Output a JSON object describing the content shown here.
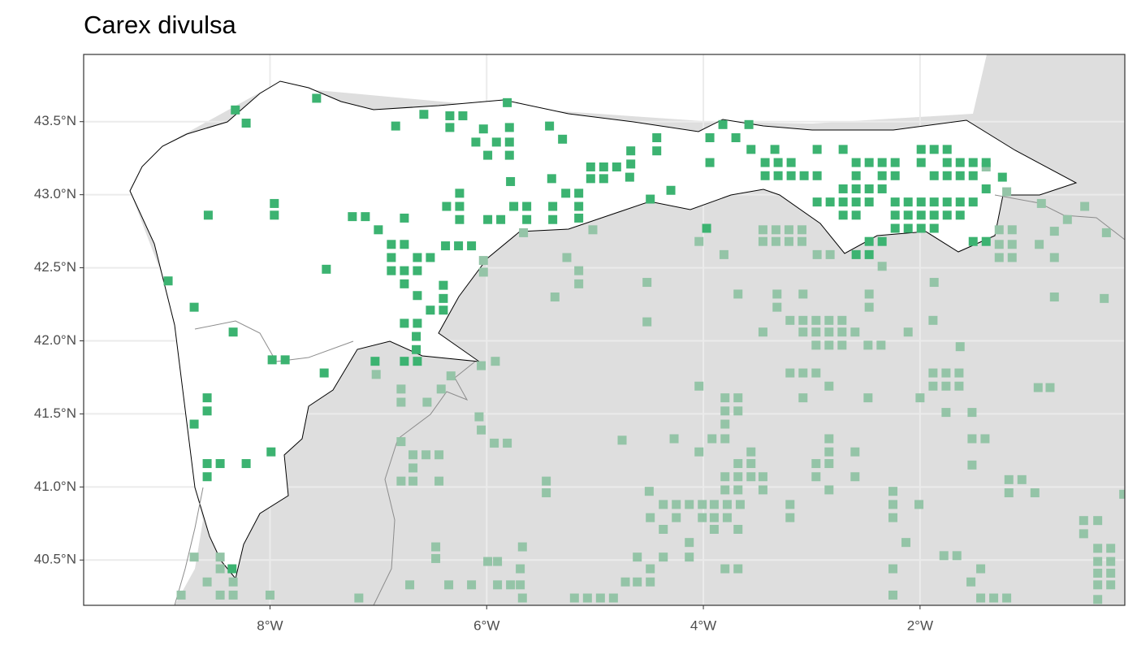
{
  "chart_data": {
    "type": "scatter",
    "title": "Carex divulsa",
    "xlim": [
      -9.72,
      -0.11
    ],
    "ylim": [
      40.19,
      43.96
    ],
    "xticks": [
      {
        "value": -8,
        "label": "8°W"
      },
      {
        "value": -6,
        "label": "6°W"
      },
      {
        "value": -4,
        "label": "4°W"
      },
      {
        "value": -2,
        "label": "2°W"
      }
    ],
    "yticks": [
      {
        "value": 40.5,
        "label": "40.5°N"
      },
      {
        "value": 41.0,
        "label": "41.0°N"
      },
      {
        "value": 41.5,
        "label": "41.5°N"
      },
      {
        "value": 42.0,
        "label": "42.0°N"
      },
      {
        "value": 42.5,
        "label": "42.5°N"
      },
      {
        "value": 43.0,
        "label": "43.0°N"
      },
      {
        "value": 43.5,
        "label": "43.5°N"
      }
    ],
    "grid": true,
    "series": [
      {
        "color": "#94c4a7",
        "x": [
          -6.03,
          -6.03,
          -5.26,
          -5.15,
          -5.15,
          -5.37,
          -5.66,
          -5.02,
          -4.52,
          -4.52,
          -4.04,
          -3.81,
          -3.68,
          -3.45,
          -3.33,
          -3.21,
          -3.09,
          -3.45,
          -3.33,
          -3.21,
          -3.09,
          -2.95,
          -2.83,
          -2.35,
          -1.87,
          -1.27,
          -1.15,
          -1.27,
          -1.15,
          -1.27,
          -1.15,
          -0.9,
          -0.76,
          -0.76,
          -0.64,
          -0.28,
          -0.3,
          -0.76,
          -0.88,
          -3.32,
          -3.08,
          -3.32,
          -3.2,
          -3.08,
          -2.96,
          -2.84,
          -2.72,
          -3.08,
          -2.96,
          -2.84,
          -2.72,
          -2.6,
          -3.45,
          -2.96,
          -2.84,
          -2.72,
          -2.48,
          -2.36,
          -2.11,
          -2.47,
          -2.47,
          -1.88,
          -1.63,
          -3.2,
          -3.08,
          -2.96,
          -2.84,
          -3.08,
          -2.48,
          -1.88,
          -1.76,
          -1.64,
          -1.88,
          -1.76,
          -1.64,
          -2.0,
          -1.76,
          -1.52,
          -0.91,
          -0.8,
          -4.04,
          -3.8,
          -3.68,
          -3.8,
          -3.68,
          -3.8,
          -3.92,
          -3.8,
          -4.04,
          -3.56,
          -3.68,
          -3.56,
          -3.8,
          -3.68,
          -3.56,
          -3.45,
          -3.8,
          -3.68,
          -3.45,
          -2.96,
          -2.84,
          -2.84,
          -2.84,
          -2.6,
          -2.96,
          -2.84,
          -2.6,
          -1.52,
          -1.4,
          -1.52,
          -1.18,
          -1.06,
          -1.18,
          -0.94,
          -2.25,
          -2.01,
          -2.25,
          -2.25,
          -3.2,
          -3.2,
          -4.5,
          -4.37,
          -4.25,
          -4.13,
          -4.01,
          -3.9,
          -3.78,
          -3.66,
          -4.49,
          -4.25,
          -4.01,
          -3.9,
          -3.78,
          -4.37,
          -3.9,
          -3.68,
          -4.13,
          -4.61,
          -4.37,
          -4.13,
          -4.49,
          -4.61,
          -4.49,
          -4.72,
          -4.83,
          -4.95,
          -5.07,
          -5.19,
          -3.8,
          -3.68,
          -2.25,
          -2.25,
          -2.13,
          -1.78,
          -1.66,
          -1.44,
          -1.53,
          -1.44,
          -1.32,
          -1.2,
          -0.49,
          -0.36,
          -0.49,
          -0.36,
          -0.24,
          -0.36,
          -0.24,
          -0.36,
          -0.24,
          -0.36,
          -0.24,
          -0.36,
          -0.12,
          -1.39,
          -1.2,
          -0.48,
          -5.92,
          -5.69,
          -5.69,
          -5.99,
          -5.9,
          -5.9,
          -5.78,
          -5.67,
          -6.14,
          -6.35,
          -6.47,
          -6.47,
          -5.67,
          -6.71,
          -6.79,
          -6.68,
          -6.56,
          -6.44,
          -6.68,
          -6.79,
          -6.68,
          -6.44,
          -6.07,
          -6.05,
          -5.93,
          -5.81,
          -5.45,
          -5.45,
          -4.75,
          -4.27,
          -6.33,
          -6.42,
          -6.55,
          -6.79,
          -6.79,
          -7.02,
          -6.05,
          -8.7,
          -8.46,
          -8.46,
          -8.58,
          -8.34,
          -8.82,
          -8.46,
          -8.34,
          -8.0,
          -7.18
        ],
        "values": [
          42.55,
          42.47,
          42.57,
          42.48,
          42.39,
          42.3,
          42.74,
          42.76,
          42.4,
          42.13,
          42.68,
          42.59,
          42.32,
          42.76,
          42.76,
          42.76,
          42.76,
          42.68,
          42.68,
          42.68,
          42.68,
          42.59,
          42.59,
          42.51,
          42.4,
          42.76,
          42.76,
          42.66,
          42.66,
          42.57,
          42.57,
          42.66,
          42.75,
          42.57,
          42.83,
          42.74,
          42.29,
          42.3,
          42.94,
          42.32,
          42.32,
          42.23,
          42.14,
          42.14,
          42.14,
          42.14,
          42.14,
          42.06,
          42.06,
          42.06,
          42.06,
          42.06,
          42.06,
          41.97,
          41.97,
          41.97,
          41.97,
          41.97,
          42.06,
          42.32,
          42.23,
          42.14,
          41.96,
          41.78,
          41.78,
          41.78,
          41.69,
          41.61,
          41.61,
          41.78,
          41.78,
          41.78,
          41.69,
          41.69,
          41.69,
          41.61,
          41.51,
          41.51,
          41.68,
          41.68,
          41.69,
          41.61,
          41.61,
          41.52,
          41.52,
          41.43,
          41.33,
          41.33,
          41.24,
          41.24,
          41.16,
          41.16,
          41.07,
          41.07,
          41.07,
          41.07,
          40.98,
          40.98,
          40.98,
          41.16,
          41.16,
          41.24,
          41.33,
          41.24,
          41.07,
          40.98,
          41.07,
          41.33,
          41.33,
          41.15,
          41.05,
          41.05,
          40.96,
          40.96,
          40.97,
          40.88,
          40.88,
          40.79,
          40.88,
          40.79,
          40.97,
          40.88,
          40.88,
          40.88,
          40.88,
          40.88,
          40.88,
          40.88,
          40.79,
          40.79,
          40.79,
          40.79,
          40.79,
          40.71,
          40.71,
          40.71,
          40.62,
          40.52,
          40.52,
          40.52,
          40.44,
          40.35,
          40.35,
          40.35,
          40.24,
          40.24,
          40.24,
          40.24,
          40.44,
          40.44,
          40.44,
          40.26,
          40.62,
          40.53,
          40.53,
          40.44,
          40.35,
          40.24,
          40.24,
          40.24,
          40.77,
          40.77,
          40.68,
          40.58,
          40.58,
          40.49,
          40.49,
          40.41,
          40.41,
          40.33,
          40.33,
          40.23,
          40.95,
          43.19,
          43.02,
          42.92,
          41.86,
          40.44,
          40.33,
          40.49,
          40.49,
          40.33,
          40.33,
          40.24,
          40.33,
          40.33,
          40.51,
          40.59,
          40.59,
          40.33,
          41.31,
          41.22,
          41.22,
          41.22,
          41.13,
          41.04,
          41.04,
          41.04,
          41.48,
          41.39,
          41.3,
          41.3,
          41.04,
          40.96,
          41.32,
          41.33,
          41.76,
          41.67,
          41.58,
          41.58,
          41.67,
          41.77,
          41.83,
          40.52,
          40.52,
          40.44,
          40.35,
          40.35,
          40.26,
          40.26,
          40.26,
          40.26,
          40.24
        ]
      },
      {
        "color": "#3cb371",
        "x": [
          -8.32,
          -8.22,
          -7.57,
          -5.81,
          -6.84,
          -6.58,
          -6.34,
          -6.22,
          -6.34,
          -6.03,
          -5.79,
          -6.1,
          -5.91,
          -5.79,
          -5.99,
          -5.79,
          -5.78,
          -5.42,
          -5.3,
          -5.4,
          -5.04,
          -4.92,
          -4.8,
          -5.04,
          -4.92,
          -4.68,
          -4.67,
          -4.43,
          -4.43,
          -4.67,
          -3.94,
          -3.82,
          -3.7,
          -3.58,
          -3.94,
          -3.56,
          -3.34,
          -3.43,
          -3.31,
          -3.19,
          -3.43,
          -3.31,
          -3.19,
          -3.07,
          -2.95,
          -2.95,
          -2.71,
          -2.59,
          -2.47,
          -2.35,
          -2.23,
          -2.59,
          -2.35,
          -2.23,
          -2.71,
          -2.59,
          -2.47,
          -2.35,
          -2.95,
          -2.83,
          -2.71,
          -2.59,
          -2.47,
          -2.23,
          -2.11,
          -1.99,
          -1.87,
          -1.75,
          -1.63,
          -1.51,
          -2.71,
          -2.59,
          -2.23,
          -2.11,
          -1.99,
          -1.87,
          -1.75,
          -1.63,
          -1.99,
          -1.87,
          -1.75,
          -1.99,
          -1.75,
          -1.63,
          -1.51,
          -1.39,
          -1.87,
          -1.75,
          -1.63,
          -1.51,
          -1.39,
          -1.24,
          -2.23,
          -2.11,
          -1.99,
          -1.87,
          -2.47,
          -2.35,
          -2.59,
          -2.47,
          -1.51,
          -1.39,
          -6.25,
          -6.37,
          -6.25,
          -6.25,
          -5.99,
          -5.87,
          -5.75,
          -5.63,
          -5.63,
          -5.39,
          -5.39,
          -5.27,
          -5.15,
          -5.15,
          -5.15,
          -4.49,
          -4.3,
          -7.24,
          -7.12,
          -7.0,
          -6.76,
          -6.88,
          -6.76,
          -6.88,
          -6.64,
          -6.52,
          -6.38,
          -6.26,
          -6.14,
          -6.88,
          -6.76,
          -6.64,
          -6.76,
          -6.4,
          -6.64,
          -6.4,
          -6.52,
          -6.4,
          -6.76,
          -6.64,
          -6.65,
          -6.65,
          -7.96,
          -7.96,
          -8.57,
          -7.48,
          -8.94,
          -8.7,
          -8.34,
          -7.98,
          -7.86,
          -7.5,
          -8.58,
          -8.58,
          -8.7,
          -7.99,
          -8.58,
          -8.46,
          -8.22,
          -8.58,
          -8.35,
          -7.03,
          -6.76,
          -6.64,
          -3.97
        ],
        "values": [
          43.58,
          43.49,
          43.66,
          43.63,
          43.47,
          43.55,
          43.54,
          43.54,
          43.46,
          43.45,
          43.46,
          43.36,
          43.36,
          43.36,
          43.27,
          43.27,
          43.09,
          43.47,
          43.38,
          43.11,
          43.19,
          43.19,
          43.19,
          43.11,
          43.11,
          43.12,
          43.3,
          43.3,
          43.39,
          43.21,
          43.39,
          43.48,
          43.39,
          43.48,
          43.22,
          43.31,
          43.31,
          43.22,
          43.22,
          43.22,
          43.13,
          43.13,
          43.13,
          43.13,
          43.13,
          43.31,
          43.31,
          43.22,
          43.22,
          43.22,
          43.22,
          43.13,
          43.13,
          43.13,
          43.04,
          43.04,
          43.04,
          43.04,
          42.95,
          42.95,
          42.95,
          42.95,
          42.95,
          42.95,
          42.95,
          42.95,
          42.95,
          42.95,
          42.95,
          42.95,
          42.86,
          42.86,
          42.86,
          42.86,
          42.86,
          42.86,
          42.86,
          42.86,
          43.31,
          43.31,
          43.31,
          43.22,
          43.22,
          43.22,
          43.22,
          43.22,
          43.13,
          43.13,
          43.13,
          43.13,
          43.04,
          43.12,
          42.77,
          42.77,
          42.77,
          42.77,
          42.68,
          42.68,
          42.59,
          42.59,
          42.68,
          42.68,
          43.01,
          42.92,
          42.92,
          42.83,
          42.83,
          42.83,
          42.92,
          42.92,
          42.83,
          42.92,
          42.83,
          43.01,
          43.01,
          42.92,
          42.84,
          42.97,
          43.03,
          42.85,
          42.85,
          42.76,
          42.84,
          42.66,
          42.66,
          42.57,
          42.57,
          42.57,
          42.65,
          42.65,
          42.65,
          42.48,
          42.48,
          42.48,
          42.39,
          42.38,
          42.31,
          42.29,
          42.21,
          42.21,
          42.12,
          42.12,
          42.03,
          41.94,
          42.94,
          42.86,
          42.86,
          42.49,
          42.41,
          42.23,
          42.06,
          41.87,
          41.87,
          41.78,
          41.61,
          41.52,
          41.43,
          41.24,
          41.16,
          41.16,
          41.16,
          41.07,
          40.44,
          41.86,
          41.86,
          41.86,
          42.77
        ]
      }
    ]
  }
}
